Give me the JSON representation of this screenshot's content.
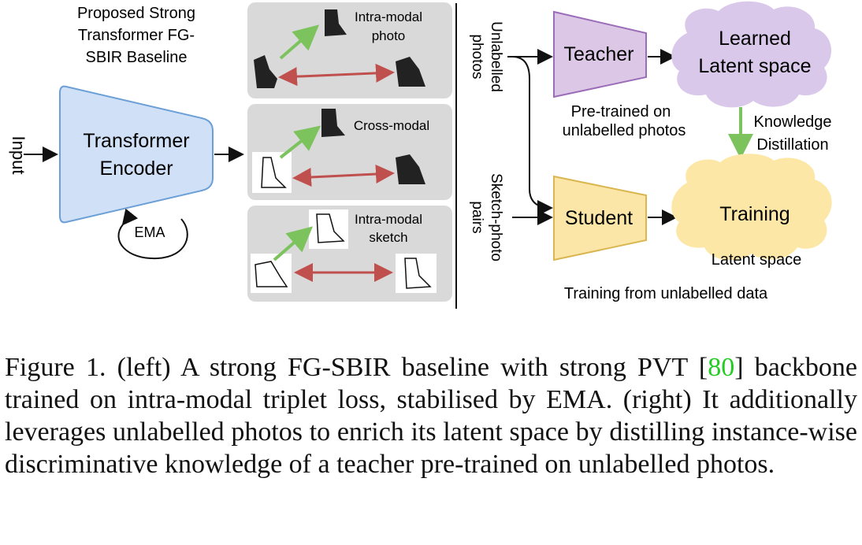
{
  "left": {
    "baseline_title": [
      "Proposed Strong",
      "Transformer FG-",
      "SBIR Baseline"
    ],
    "input_label": "Input",
    "encoder_label": [
      "Transformer",
      "Encoder"
    ],
    "ema_label": "EMA",
    "panels": [
      {
        "label": [
          "Intra-modal",
          "photo"
        ]
      },
      {
        "label": [
          "Cross-modal"
        ]
      },
      {
        "label": [
          "Intra-modal",
          "sketch"
        ]
      }
    ]
  },
  "right": {
    "unlabelled_photos": [
      "Unlabelled",
      "photos"
    ],
    "sketch_photo_pairs": [
      "Sketch-photo",
      "pairs"
    ],
    "teacher": "Teacher",
    "student": "Student",
    "learned_latent": [
      "Learned",
      "Latent space"
    ],
    "pretrained_note": [
      "Pre-trained on",
      "unlabelled photos"
    ],
    "kd_label": [
      "Knowledge",
      "Distillation"
    ],
    "training": "Training",
    "training_latent": "Latent space",
    "bottom_label": "Training from unlabelled data"
  },
  "caption": {
    "part1": "Figure 1. (left) A strong FG-SBIR baseline with strong PVT [",
    "cite": "80",
    "part2": "] backbone trained on intra-modal triplet loss, stabilised by EMA. (right) It additionally leverages unlabelled photos to enrich its latent space by distilling instance-wise discriminative knowledge of a teacher pre-trained on unlabelled photos."
  },
  "colors": {
    "encoder_fill": "#cfe0f7",
    "encoder_stroke": "#6b9fd6",
    "teacher_fill": "#dcc8e6",
    "teacher_stroke": "#9b6db8",
    "student_fill": "#fbe6a8",
    "student_stroke": "#d9b650",
    "cloud_purple": "#d9c8ea",
    "cloud_yellow": "#fde7a6",
    "panel_bg": "#d9d9d9",
    "arrow_green": "#7cc35e",
    "arrow_red": "#c0504d"
  }
}
